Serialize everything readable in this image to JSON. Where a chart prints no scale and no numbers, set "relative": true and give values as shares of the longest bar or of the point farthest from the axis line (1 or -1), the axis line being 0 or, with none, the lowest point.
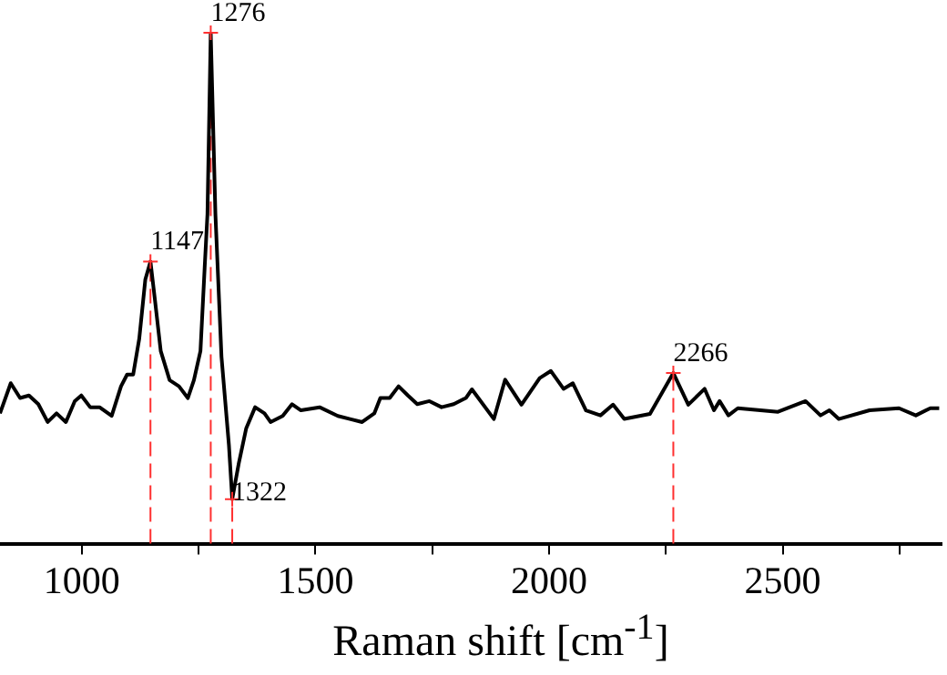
{
  "chart_data": {
    "type": "line",
    "relative": true,
    "xlabel": "Raman shift [cm$^{-1}$]",
    "xlim": [
      825,
      2840
    ],
    "xticks": [
      1000,
      {
        "value": 1250,
        "label": null
      },
      1500,
      {
        "value": 1750,
        "label": null
      },
      2000,
      {
        "value": 2250,
        "label": null
      },
      2500,
      {
        "value": 2750,
        "label": null
      }
    ],
    "grid": false,
    "marker": "none",
    "line_style": "solid",
    "x": [
      825,
      848,
      868,
      887,
      907,
      927,
      946,
      966,
      985,
      999,
      1018,
      1038,
      1064,
      1084,
      1097,
      1110,
      1123,
      1136,
      1147,
      1156,
      1169,
      1188,
      1208,
      1227,
      1240,
      1254,
      1263,
      1269,
      1276,
      1286,
      1299,
      1315,
      1322,
      1336,
      1352,
      1371,
      1391,
      1404,
      1430,
      1450,
      1469,
      1509,
      1548,
      1574,
      1600,
      1626,
      1639,
      1659,
      1678,
      1698,
      1718,
      1744,
      1770,
      1796,
      1822,
      1835,
      1882,
      1906,
      1941,
      1980,
      2004,
      2031,
      2051,
      2079,
      2110,
      2137,
      2161,
      2216,
      2266,
      2298,
      2333,
      2353,
      2365,
      2384,
      2404,
      2490,
      2549,
      2581,
      2600,
      2620,
      2686,
      2749,
      2785,
      2816,
      2835
    ],
    "series": [
      {
        "color": "#000000",
        "values": [
          0.255,
          0.314,
          0.285,
          0.29,
          0.273,
          0.238,
          0.255,
          0.238,
          0.279,
          0.29,
          0.267,
          0.267,
          0.25,
          0.308,
          0.331,
          0.331,
          0.401,
          0.517,
          0.552,
          0.482,
          0.377,
          0.32,
          0.308,
          0.285,
          0.32,
          0.377,
          0.54,
          0.645,
          1.0,
          0.645,
          0.366,
          0.192,
          0.087,
          0.157,
          0.226,
          0.267,
          0.255,
          0.238,
          0.25,
          0.273,
          0.261,
          0.267,
          0.25,
          0.244,
          0.238,
          0.255,
          0.285,
          0.285,
          0.308,
          0.29,
          0.273,
          0.279,
          0.267,
          0.273,
          0.285,
          0.302,
          0.244,
          0.321,
          0.272,
          0.324,
          0.338,
          0.303,
          0.314,
          0.261,
          0.251,
          0.272,
          0.244,
          0.254,
          0.334,
          0.272,
          0.303,
          0.261,
          0.279,
          0.251,
          0.265,
          0.258,
          0.279,
          0.251,
          0.261,
          0.244,
          0.261,
          0.265,
          0.251,
          0.265,
          0.265
        ]
      }
    ],
    "ref_lines": [
      {
        "axis": "x",
        "value": 1147,
        "color": "#ff3030",
        "line_style": "dashed"
      },
      {
        "axis": "x",
        "value": 1276,
        "color": "#ff3030",
        "line_style": "dashed"
      },
      {
        "axis": "x",
        "value": 1322,
        "color": "#ff3030",
        "line_style": "dashed"
      },
      {
        "axis": "x",
        "value": 2266,
        "color": "#ff3030",
        "line_style": "dashed"
      }
    ],
    "annotations": [
      {
        "text": "1147",
        "x": 1147,
        "y": 0.552
      },
      {
        "text": "1276",
        "x": 1276,
        "y": 1.0
      },
      {
        "text": "1322",
        "x": 1322,
        "y": 0.087
      },
      {
        "text": "2266",
        "x": 2266,
        "y": 0.334
      }
    ]
  }
}
